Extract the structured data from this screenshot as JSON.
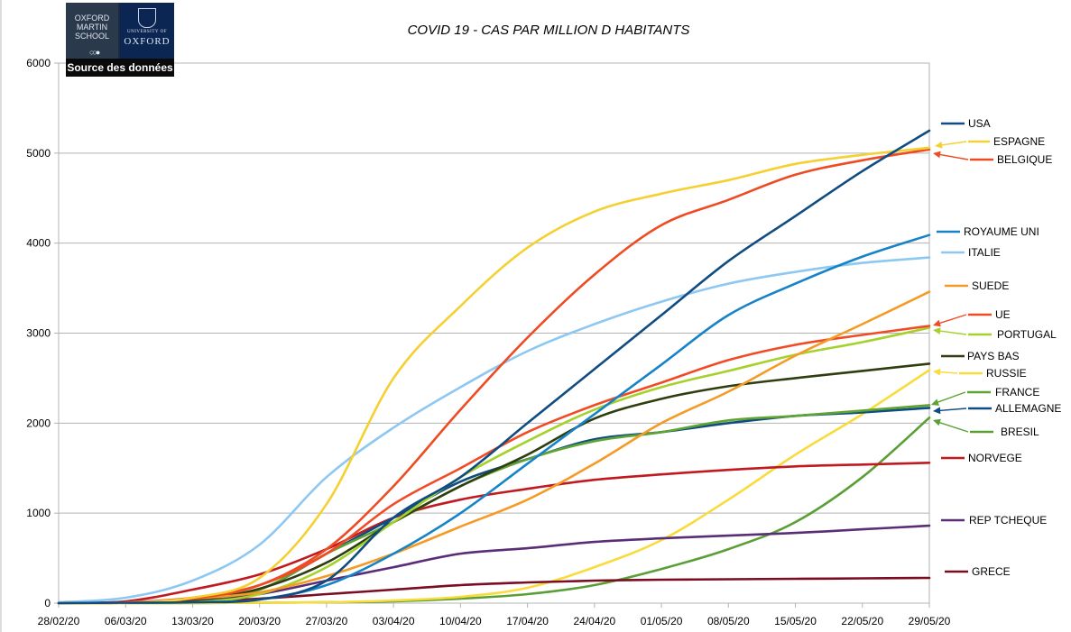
{
  "logo": {
    "org_line1": "OXFORD",
    "org_line2": "MARTIN",
    "org_line3": "SCHOOL",
    "univ_small": "UNIVERSITY OF",
    "univ_name": "OXFORD",
    "caption": "Source des données"
  },
  "chart_data": {
    "type": "line",
    "title": "COVID 19 - CAS PAR MILLION D HABITANTS",
    "xlabel": "",
    "ylabel": "",
    "ylim": [
      0,
      6000
    ],
    "yticks": [
      0,
      1000,
      2000,
      3000,
      4000,
      5000,
      6000
    ],
    "grid": true,
    "x_day_range": [
      0,
      91
    ],
    "x_ticks": [
      {
        "label": "28/02/20",
        "day": 0
      },
      {
        "label": "06/03/20",
        "day": 7
      },
      {
        "label": "13/03/20",
        "day": 14
      },
      {
        "label": "20/03/20",
        "day": 21
      },
      {
        "label": "27/03/20",
        "day": 28
      },
      {
        "label": "03/04/20",
        "day": 35
      },
      {
        "label": "10/04/20",
        "day": 42
      },
      {
        "label": "17/04/20",
        "day": 49
      },
      {
        "label": "24/04/20",
        "day": 56
      },
      {
        "label": "01/05/20",
        "day": 63
      },
      {
        "label": "08/05/20",
        "day": 70
      },
      {
        "label": "15/05/20",
        "day": 77
      },
      {
        "label": "22/05/20",
        "day": 84
      },
      {
        "label": "29/05/20",
        "day": 91
      }
    ],
    "x_days": [
      0,
      7,
      14,
      21,
      28,
      35,
      42,
      49,
      56,
      63,
      70,
      77,
      84,
      91
    ],
    "series": [
      {
        "name": "USA",
        "color": "#0f4c81",
        "values": [
          0,
          5,
          10,
          40,
          250,
          950,
          1400,
          2000,
          2600,
          3200,
          3800,
          4300,
          4800,
          5250
        ]
      },
      {
        "name": "ESPAGNE",
        "color": "#f5d033",
        "values": [
          0,
          5,
          60,
          280,
          1100,
          2500,
          3300,
          3950,
          4350,
          4550,
          4700,
          4880,
          4980,
          5060
        ]
      },
      {
        "name": "BELGIQUE",
        "color": "#ee4b23",
        "values": [
          0,
          5,
          50,
          200,
          600,
          1300,
          2150,
          2950,
          3650,
          4200,
          4480,
          4760,
          4920,
          5040
        ]
      },
      {
        "name": "ROYAUME UNI",
        "color": "#1683c7",
        "values": [
          0,
          5,
          10,
          40,
          200,
          550,
          1000,
          1550,
          2100,
          2650,
          3200,
          3550,
          3850,
          4090
        ]
      },
      {
        "name": "ITALIE",
        "color": "#8dc8f2",
        "values": [
          10,
          60,
          250,
          650,
          1400,
          1950,
          2400,
          2800,
          3100,
          3350,
          3550,
          3680,
          3780,
          3840
        ]
      },
      {
        "name": "SUEDE",
        "color": "#f59b25",
        "values": [
          0,
          5,
          50,
          120,
          300,
          550,
          850,
          1150,
          1550,
          2000,
          2350,
          2750,
          3100,
          3460
        ]
      },
      {
        "name": "UE",
        "color": "#f04b25",
        "values": [
          0,
          10,
          60,
          200,
          550,
          1100,
          1500,
          1900,
          2200,
          2450,
          2700,
          2870,
          2980,
          3080
        ]
      },
      {
        "name": "PORTUGAL",
        "color": "#a6d12c",
        "values": [
          0,
          5,
          10,
          100,
          400,
          900,
          1400,
          1800,
          2150,
          2400,
          2580,
          2760,
          2900,
          3060
        ]
      },
      {
        "name": "PAYS BAS",
        "color": "#2f3d0f",
        "values": [
          0,
          5,
          30,
          160,
          450,
          900,
          1300,
          1650,
          2050,
          2270,
          2410,
          2500,
          2580,
          2660
        ]
      },
      {
        "name": "RUSSIE",
        "color": "#f9db3c",
        "values": [
          0,
          0,
          0,
          5,
          10,
          30,
          70,
          170,
          400,
          700,
          1150,
          1650,
          2100,
          2590
        ]
      },
      {
        "name": "FRANCE",
        "color": "#5fa332",
        "values": [
          0,
          5,
          40,
          150,
          550,
          900,
          1300,
          1600,
          1800,
          1900,
          2030,
          2080,
          2140,
          2200
        ]
      },
      {
        "name": "ALLEMAGNE",
        "color": "#0f4c81",
        "values": [
          0,
          5,
          30,
          150,
          550,
          950,
          1350,
          1600,
          1820,
          1900,
          2000,
          2080,
          2120,
          2170
        ]
      },
      {
        "name": "BRESIL",
        "color": "#5a9f36",
        "values": [
          0,
          0,
          0,
          5,
          10,
          20,
          50,
          100,
          200,
          380,
          600,
          900,
          1400,
          2060
        ]
      },
      {
        "name": "NORVEGE",
        "color": "#c01a20",
        "values": [
          0,
          20,
          150,
          320,
          600,
          950,
          1150,
          1270,
          1370,
          1430,
          1480,
          1520,
          1540,
          1560
        ]
      },
      {
        "name": "REP TCHEQUE",
        "color": "#5a2d77",
        "values": [
          0,
          5,
          20,
          100,
          250,
          400,
          550,
          610,
          680,
          720,
          750,
          780,
          820,
          860
        ]
      },
      {
        "name": "GRECE",
        "color": "#7a0d22",
        "values": [
          0,
          5,
          20,
          50,
          100,
          150,
          200,
          230,
          250,
          260,
          265,
          270,
          275,
          280
        ]
      }
    ]
  }
}
